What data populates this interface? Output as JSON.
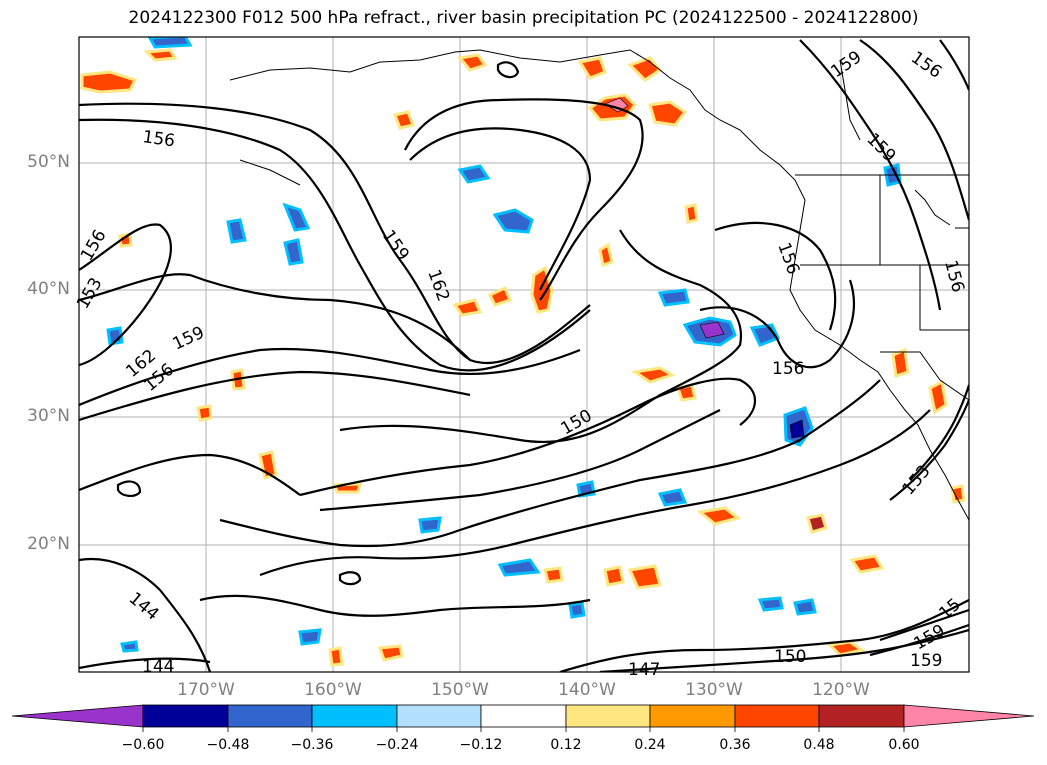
{
  "title": "2024122300 F012 500 hPa refract., river basin precipitation PC (2024122500 - 2024122800)",
  "lat_labels": [
    "50°N",
    "40°N",
    "30°N",
    "20°N"
  ],
  "lon_labels": [
    "170°W",
    "160°W",
    "150°W",
    "140°W",
    "130°W",
    "120°W"
  ],
  "colorbar": {
    "ticks": [
      "−0.60",
      "−0.48",
      "−0.36",
      "−0.24",
      "−0.12",
      "0.12",
      "0.24",
      "0.36",
      "0.48",
      "0.60"
    ],
    "colors": [
      "#9933cc",
      "#000099",
      "#3366cc",
      "#00bfff",
      "#b3e0ff",
      "#ffffff",
      "#ffe680",
      "#ff9900",
      "#ff4500",
      "#b22222",
      "#ff85a8"
    ]
  },
  "contour_labels": [
    "156",
    "159",
    "162",
    "156",
    "153",
    "159",
    "162",
    "156",
    "150",
    "156",
    "159",
    "156",
    "159",
    "156",
    "153",
    "156",
    "144",
    "144",
    "147",
    "150",
    "159",
    "159",
    "15"
  ],
  "map_extent": {
    "lon": [
      -180,
      -110
    ],
    "lat": [
      10,
      60
    ]
  }
}
